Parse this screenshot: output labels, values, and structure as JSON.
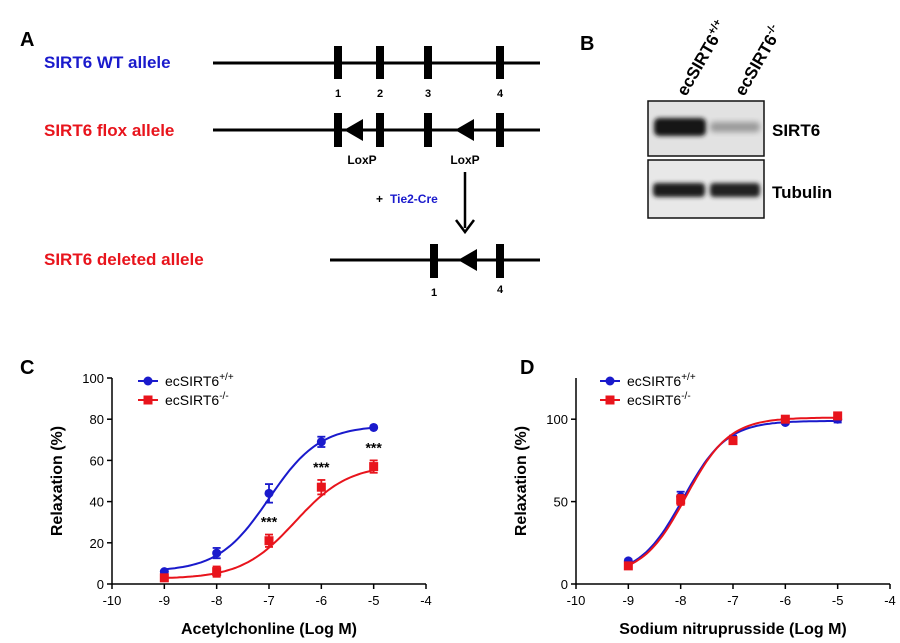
{
  "colors": {
    "wt_blue": "#1a1acc",
    "ko_red": "#e8141c",
    "black": "#000000"
  },
  "panel_a": {
    "label": "A",
    "wt_allele_label": "SIRT6 WT allele",
    "flox_allele_label": "SIRT6 flox allele",
    "deleted_allele_label": "SIRT6 deleted allele",
    "exon_numbers": [
      "1",
      "2",
      "3",
      "4"
    ],
    "deleted_exon_numbers": [
      "1",
      "4"
    ],
    "loxp_label": "LoxP",
    "cre_plus": "+",
    "cre_label": "Tie2-Cre"
  },
  "panel_b": {
    "label": "B",
    "lane_labels": [
      "ecSIRT6",
      "ecSIRT6"
    ],
    "lane_superscripts": [
      "+/+",
      "-/-"
    ],
    "bands": [
      "SIRT6",
      "Tubulin"
    ]
  },
  "chart_data": [
    {
      "panel": "C",
      "type": "line",
      "xlabel": "Acetylchonline (Log M)",
      "ylabel": "Relaxation (%)",
      "xlim": [
        -10,
        -4
      ],
      "ylim": [
        0,
        100
      ],
      "xticks": [
        -10,
        -9,
        -8,
        -7,
        -6,
        -5,
        -4
      ],
      "yticks": [
        0,
        20,
        40,
        60,
        80,
        100
      ],
      "x": [
        -9,
        -8,
        -7,
        -6,
        -5
      ],
      "series": [
        {
          "name": "ecSIRT6",
          "sup": "+/+",
          "color": "#1a1acc",
          "marker": "circle",
          "values": [
            6,
            15,
            44,
            69,
            76
          ],
          "errors": [
            0.5,
            2.5,
            4.5,
            2.5,
            0.5
          ]
        },
        {
          "name": "ecSIRT6",
          "sup": "-/-",
          "color": "#e8141c",
          "marker": "square",
          "values": [
            3,
            6,
            21,
            47,
            57
          ],
          "errors": [
            0.5,
            2.5,
            3,
            3.5,
            3
          ]
        }
      ],
      "fit_params": [
        {
          "bottom": 6,
          "top": 77,
          "logec50": -7.0,
          "hill": 0.9
        },
        {
          "bottom": 2.5,
          "top": 58,
          "logec50": -6.5,
          "hill": 0.85
        }
      ],
      "annotations": [
        {
          "x": -7,
          "text": "***"
        },
        {
          "x": -6,
          "text": "***"
        },
        {
          "x": -5,
          "text": "***"
        }
      ]
    },
    {
      "panel": "D",
      "type": "line",
      "xlabel": "Sodium nitruprusside (Log M)",
      "ylabel": "Relaxation (%)",
      "xlim": [
        -10,
        -4
      ],
      "ylim": [
        0,
        125
      ],
      "xticks": [
        -10,
        -9,
        -8,
        -7,
        -6,
        -5,
        -4
      ],
      "yticks": [
        0,
        50,
        100
      ],
      "x": [
        -9,
        -8,
        -7,
        -6,
        -5
      ],
      "series": [
        {
          "name": "ecSIRT6",
          "sup": "+/+",
          "color": "#1a1acc",
          "marker": "circle",
          "values": [
            14,
            53,
            88,
            98,
            100
          ],
          "errors": [
            1,
            3,
            2,
            1,
            2
          ]
        },
        {
          "name": "ecSIRT6",
          "sup": "-/-",
          "color": "#e8141c",
          "marker": "square",
          "values": [
            11,
            51,
            87,
            100,
            102
          ],
          "errors": [
            1,
            3,
            2,
            1,
            1
          ]
        }
      ],
      "fit_params": [
        {
          "bottom": 5,
          "top": 99,
          "logec50": -7.95,
          "hill": 1.05
        },
        {
          "bottom": 5,
          "top": 101,
          "logec50": -7.9,
          "hill": 1.05
        }
      ],
      "annotations": []
    }
  ]
}
